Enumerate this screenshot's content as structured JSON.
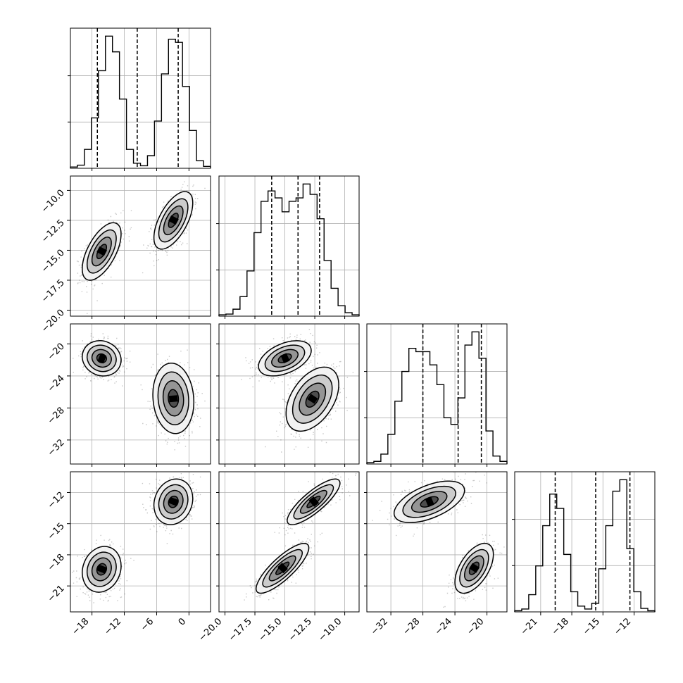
{
  "chart_data": {
    "type": "corner",
    "title": "",
    "parameters": [
      {
        "range": [
          -22,
          4
        ],
        "ticks": [
          -18,
          -12,
          -6,
          0
        ],
        "tick_labels": [
          "−18",
          "−12",
          "−6",
          "0"
        ]
      },
      {
        "range": [
          -20.5,
          -8.8
        ],
        "ticks": [
          -20.0,
          -17.5,
          -15.0,
          -12.5,
          -10.0
        ],
        "tick_labels": [
          "−20.0",
          "−17.5",
          "−15.0",
          "−12.5",
          "−10.0"
        ]
      },
      {
        "range": [
          -35,
          -17.5
        ],
        "ticks": [
          -32,
          -28,
          -24,
          -20
        ],
        "tick_labels": [
          "−32",
          "−28",
          "−24",
          "−20"
        ]
      },
      {
        "range": [
          -23.5,
          -10.0
        ],
        "ticks": [
          -21,
          -18,
          -15,
          -12
        ],
        "tick_labels": [
          "−21",
          "−18",
          "−15",
          "−12"
        ]
      }
    ],
    "grid": true,
    "histograms": [
      {
        "parameter": 0,
        "bin_edges": [
          -22,
          -20.7,
          -19.4,
          -18.1,
          -16.8,
          -15.5,
          -14.2,
          -12.9,
          -11.6,
          -10.3,
          -9.0,
          -7.7,
          -6.4,
          -5.1,
          -3.8,
          -2.5,
          -1.2,
          0.1,
          1.4,
          2.7,
          4.0
        ],
        "counts": [
          2,
          5,
          30,
          80,
          155,
          210,
          185,
          110,
          30,
          8,
          4,
          20,
          75,
          150,
          205,
          200,
          130,
          60,
          12,
          3
        ],
        "quantiles": [
          -17.0,
          -9.6,
          -2.0
        ]
      },
      {
        "parameter": 1,
        "bin_edges": [
          -20.5,
          -19.915,
          -19.33,
          -18.745,
          -18.16,
          -17.575,
          -16.99,
          -16.405,
          -15.82,
          -15.235,
          -14.65,
          -14.065,
          -13.48,
          -12.895,
          -12.31,
          -11.725,
          -11.14,
          -10.555,
          -9.97,
          -9.385,
          -8.8
        ],
        "counts": [
          2,
          3,
          10,
          28,
          65,
          120,
          165,
          180,
          170,
          150,
          165,
          170,
          190,
          175,
          140,
          80,
          40,
          15,
          5,
          2
        ],
        "quantiles": [
          -16.1,
          -13.9,
          -12.1
        ]
      },
      {
        "parameter": 2,
        "bin_edges": [
          -35,
          -34.125,
          -33.25,
          -32.375,
          -31.5,
          -30.625,
          -29.75,
          -28.875,
          -28.0,
          -27.125,
          -26.25,
          -25.375,
          -24.5,
          -23.625,
          -22.75,
          -21.875,
          -21.0,
          -20.125,
          -19.25,
          -18.375,
          -17.5
        ],
        "counts": [
          2,
          4,
          15,
          45,
          95,
          140,
          175,
          170,
          170,
          150,
          120,
          70,
          60,
          100,
          180,
          200,
          160,
          50,
          12,
          4
        ],
        "quantiles": [
          -28.0,
          -23.6,
          -20.7
        ]
      },
      {
        "parameter": 3,
        "bin_edges": [
          -23.5,
          -22.825,
          -22.15,
          -21.475,
          -20.8,
          -20.125,
          -19.45,
          -18.775,
          -18.1,
          -17.425,
          -16.75,
          -16.075,
          -15.4,
          -14.725,
          -14.05,
          -13.375,
          -12.7,
          -12.025,
          -11.35,
          -10.675,
          -10.0
        ],
        "counts": [
          2,
          5,
          30,
          80,
          150,
          205,
          180,
          100,
          35,
          10,
          5,
          15,
          75,
          150,
          210,
          230,
          110,
          35,
          6,
          2
        ],
        "quantiles": [
          -19.6,
          -15.7,
          -12.4
        ]
      }
    ],
    "pairs": [
      {
        "x_param": 0,
        "y_param": 1,
        "modes": [
          {
            "x": -16.2,
            "y": -15.1,
            "sx": 1.8,
            "sy": 1.2,
            "rho": 0.6
          },
          {
            "x": -2.9,
            "y": -12.5,
            "sx": 1.8,
            "sy": 1.2,
            "rho": 0.6
          }
        ]
      },
      {
        "x_param": 0,
        "y_param": 2,
        "modes": [
          {
            "x": -16.2,
            "y": -21.8,
            "sx": 1.8,
            "sy": 1.1,
            "rho": -0.1
          },
          {
            "x": -2.9,
            "y": -26.8,
            "sx": 1.9,
            "sy": 2.2,
            "rho": -0.1
          }
        ]
      },
      {
        "x_param": 1,
        "y_param": 2,
        "modes": [
          {
            "x": -15.0,
            "y": -21.8,
            "sx": 1.1,
            "sy": 1.1,
            "rho": 0.45
          },
          {
            "x": -12.7,
            "y": -26.9,
            "sx": 1.1,
            "sy": 2.0,
            "rho": 0.45
          }
        ]
      },
      {
        "x_param": 0,
        "y_param": 3,
        "modes": [
          {
            "x": -16.2,
            "y": -19.4,
            "sx": 1.8,
            "sy": 1.1,
            "rho": 0.15
          },
          {
            "x": -2.9,
            "y": -12.9,
            "sx": 1.8,
            "sy": 1.1,
            "rho": 0.15
          }
        ]
      },
      {
        "x_param": 1,
        "y_param": 3,
        "modes": [
          {
            "x": -15.2,
            "y": -19.3,
            "sx": 1.1,
            "sy": 1.2,
            "rho": 0.82
          },
          {
            "x": -12.6,
            "y": -12.9,
            "sx": 1.1,
            "sy": 1.1,
            "rho": 0.82
          }
        ]
      },
      {
        "x_param": 2,
        "y_param": 3,
        "modes": [
          {
            "x": -27.2,
            "y": -12.9,
            "sx": 2.2,
            "sy": 1.0,
            "rho": 0.55
          },
          {
            "x": -21.6,
            "y": -19.3,
            "sx": 1.2,
            "sy": 1.2,
            "rho": 0.55
          }
        ]
      }
    ]
  }
}
